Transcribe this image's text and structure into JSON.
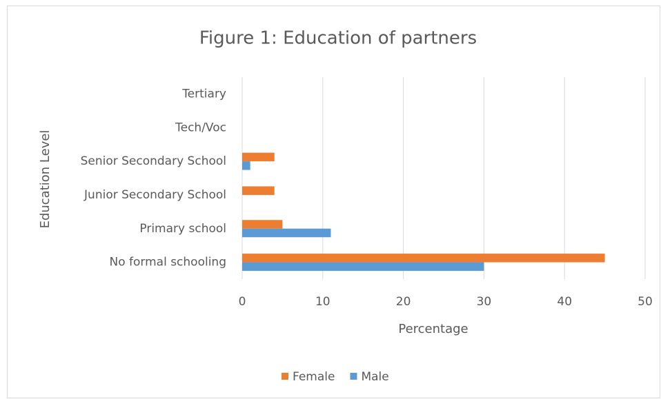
{
  "chart_data": {
    "type": "hbar",
    "title": "Figure 1: Education of partners",
    "categories": [
      "No formal schooling",
      "Primary school",
      "Junior Secondary School",
      "Senior Secondary School",
      "Tech/Voc",
      "Tertiary"
    ],
    "series": [
      {
        "name": "Female",
        "color": "#ed7d31",
        "values": [
          45,
          5,
          4,
          4,
          0,
          0
        ]
      },
      {
        "name": "Male",
        "color": "#5b9bd5",
        "values": [
          30,
          11,
          0,
          1,
          0,
          0
        ]
      }
    ],
    "xlim": [
      0,
      50
    ],
    "xticks": [
      0,
      10,
      20,
      30,
      40,
      50
    ],
    "grid": true,
    "xlabel": "Percentage",
    "ylabel": "Education Level",
    "legend": "bottom"
  }
}
